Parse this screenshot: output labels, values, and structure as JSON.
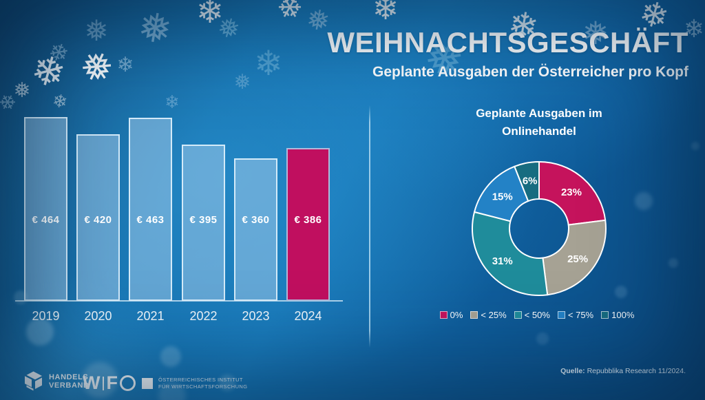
{
  "header": {
    "title": "WEIHNACHTSGESCHÄFT",
    "subtitle": "Geplante Ausgaben der Österreicher pro Kopf"
  },
  "chart_data": [
    {
      "type": "bar",
      "title": "Geplante Ausgaben der Österreicher pro Kopf",
      "categories": [
        "2019",
        "2020",
        "2021",
        "2022",
        "2023",
        "2024"
      ],
      "values": [
        464,
        420,
        463,
        395,
        360,
        386
      ],
      "value_labels": [
        "€ 464",
        "€ 420",
        "€ 463",
        "€ 395",
        "€ 360",
        "€ 386"
      ],
      "unit": "EUR",
      "highlight_category": "2024",
      "bar_color": "rgba(170,207,238,0.5)",
      "highlight_color": "#c00f5f",
      "ylim": [
        0,
        480
      ],
      "grid": false
    },
    {
      "type": "pie",
      "donut": true,
      "title": "Geplante Ausgaben im Onlinehandel",
      "labels": [
        "0%",
        "< 25%",
        "< 50%",
        "< 75%",
        "100%"
      ],
      "values": [
        23,
        25,
        31,
        15,
        6
      ],
      "slice_labels": [
        "23%",
        "25%",
        "31%",
        "15%",
        "6%"
      ],
      "colors": [
        "#c5135c",
        "#a6a294",
        "#1f8c9b",
        "#2382c6",
        "#176c80"
      ],
      "legend_position": "bottom",
      "start_angle_deg": 0,
      "direction": "clockwise"
    }
  ],
  "footer": {
    "handelsverband": {
      "line1": "HANDELS",
      "line2": "VERBAND"
    },
    "wifo": {
      "w_part": "W",
      "f_part": "F",
      "institute_line1": "ÖSTERREICHISCHES INSTITUT",
      "institute_line2": "FÜR WIRTSCHAFTSFORSCHUNG"
    },
    "source_label": "Quelle:",
    "source_text": " Repubblika Research 11/2024."
  },
  "decor": {
    "snowflake_icon": "❄",
    "snowflake_icon_alt": "❅"
  },
  "colors": {
    "accent_crimson": "#c00f5f",
    "bar_blue": "#5e95c7",
    "background_blue": "#1470ae"
  }
}
